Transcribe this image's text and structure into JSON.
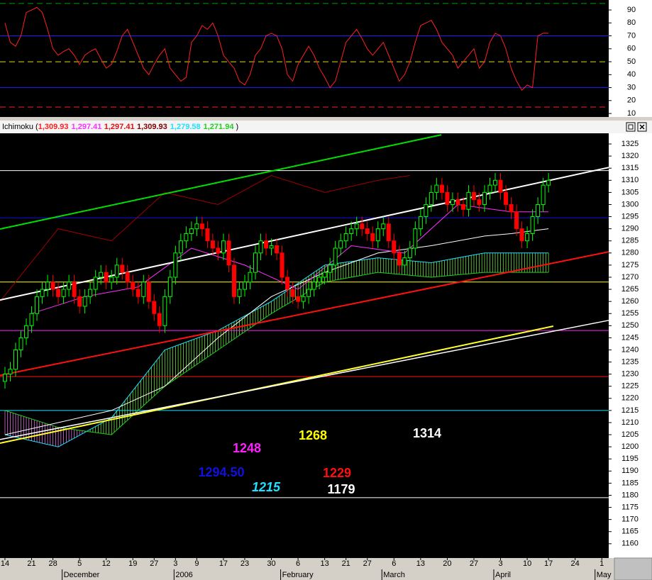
{
  "chart_data": [
    {
      "type": "line",
      "ylim": [
        7.3,
        97.7
      ],
      "xlim": [
        -0.93,
        113.3
      ],
      "yticks": [
        10,
        20,
        30,
        40,
        50,
        60,
        70,
        80,
        90
      ],
      "levels": [
        {
          "value": 95,
          "color": "#00a000",
          "dash": true
        },
        {
          "value": 70,
          "color": "#2020ff",
          "dash": false
        },
        {
          "value": 50,
          "color": "#e0e000",
          "dash": true
        },
        {
          "value": 30,
          "color": "#2020ff",
          "dash": false
        },
        {
          "value": 15,
          "color": "#ff2020",
          "dash": true
        }
      ],
      "series": [
        {
          "color": "#ff2020",
          "values": [
            80,
            65,
            62,
            70,
            88,
            90,
            92,
            88,
            75,
            60,
            55,
            58,
            60,
            55,
            48,
            55,
            58,
            60,
            52,
            45,
            48,
            58,
            70,
            75,
            65,
            55,
            45,
            40,
            48,
            55,
            60,
            45,
            40,
            35,
            38,
            65,
            70,
            78,
            75,
            80,
            70,
            55,
            50,
            45,
            35,
            32,
            40,
            55,
            60,
            70,
            72,
            70,
            60,
            40,
            35,
            48,
            55,
            62,
            55,
            45,
            38,
            30,
            35,
            50,
            65,
            70,
            75,
            68,
            60,
            55,
            60,
            65,
            55,
            45,
            35,
            40,
            50,
            65,
            78,
            80,
            82,
            75,
            65,
            60,
            55,
            45,
            50,
            55,
            60,
            45,
            50,
            65,
            72,
            70,
            60,
            45,
            35,
            28,
            32,
            30,
            70,
            72,
            72
          ]
        }
      ]
    },
    {
      "type": "candlestick",
      "title": "Ichimoku",
      "legend_open": "(",
      "legend_close": ")",
      "legend": [
        {
          "value": 1309.93,
          "label": "1,309.93",
          "color": "#ff2020"
        },
        {
          "value": 1297.41,
          "label": "1,297.41",
          "color": "#ff30ff"
        },
        {
          "value": 1297.41,
          "label": "1,297.41",
          "color": "#e01010"
        },
        {
          "value": 1309.93,
          "label": "1,309.93",
          "color": "#800000"
        },
        {
          "value": 1279.58,
          "label": "1,279.58",
          "color": "#20e0ff"
        },
        {
          "value": 1271.94,
          "label": "1,271.94",
          "color": "#20d020"
        }
      ],
      "ylim": [
        1154.1,
        1329.4
      ],
      "xlim": [
        -0.93,
        113.3
      ],
      "yticks": [
        1160,
        1165,
        1170,
        1175,
        1180,
        1185,
        1190,
        1195,
        1200,
        1205,
        1210,
        1215,
        1220,
        1225,
        1230,
        1235,
        1240,
        1245,
        1250,
        1255,
        1260,
        1265,
        1270,
        1275,
        1280,
        1285,
        1290,
        1295,
        1300,
        1305,
        1310,
        1315,
        1320,
        1325
      ],
      "xticks": [
        {
          "value": 0,
          "label": "14"
        },
        {
          "value": 5,
          "label": "21"
        },
        {
          "value": 9,
          "label": "28"
        },
        {
          "value": 14,
          "label": "5"
        },
        {
          "value": 19,
          "label": "12"
        },
        {
          "value": 24,
          "label": "19"
        },
        {
          "value": 28,
          "label": "27"
        },
        {
          "value": 32,
          "label": "3"
        },
        {
          "value": 36,
          "label": "9"
        },
        {
          "value": 41,
          "label": "17"
        },
        {
          "value": 45,
          "label": "23"
        },
        {
          "value": 50,
          "label": "30"
        },
        {
          "value": 55,
          "label": "6"
        },
        {
          "value": 60,
          "label": "13"
        },
        {
          "value": 64,
          "label": "21"
        },
        {
          "value": 68,
          "label": "27"
        },
        {
          "value": 73,
          "label": "6"
        },
        {
          "value": 78,
          "label": "13"
        },
        {
          "value": 83,
          "label": "20"
        },
        {
          "value": 88,
          "label": "27"
        },
        {
          "value": 93,
          "label": "3"
        },
        {
          "value": 98,
          "label": "10"
        },
        {
          "value": 102,
          "label": "17"
        },
        {
          "value": 107,
          "label": "24"
        },
        {
          "value": 112,
          "label": "1"
        }
      ],
      "month_ticks": [
        {
          "value": 11,
          "label": "December"
        },
        {
          "value": 32,
          "label": "2006"
        },
        {
          "value": 52,
          "label": "February"
        },
        {
          "value": 71,
          "label": "March"
        },
        {
          "value": 92,
          "label": "April"
        },
        {
          "value": 111,
          "label": "May"
        }
      ],
      "open": [
        1227,
        1230,
        1232,
        1240,
        1245,
        1250,
        1255,
        1262,
        1265,
        1268,
        1265,
        1262,
        1265,
        1268,
        1262,
        1258,
        1262,
        1265,
        1270,
        1272,
        1268,
        1270,
        1275,
        1272,
        1268,
        1265,
        1262,
        1268,
        1260,
        1255,
        1250,
        1262,
        1270,
        1280,
        1285,
        1288,
        1290,
        1292,
        1290,
        1285,
        1282,
        1280,
        1285,
        1275,
        1262,
        1265,
        1268,
        1272,
        1280,
        1285,
        1282,
        1283,
        1280,
        1270,
        1265,
        1262,
        1260,
        1262,
        1265,
        1268,
        1270,
        1272,
        1275,
        1282,
        1285,
        1288,
        1290,
        1292,
        1290,
        1288,
        1285,
        1290,
        1292,
        1285,
        1280,
        1275,
        1278,
        1282,
        1290,
        1295,
        1300,
        1305,
        1308,
        1305,
        1300,
        1302,
        1300,
        1298,
        1305,
        1302,
        1300,
        1305,
        1308,
        1310,
        1305,
        1300,
        1297,
        1290,
        1285,
        1288,
        1295,
        1300,
        1308
      ],
      "high": [
        1233,
        1235,
        1243,
        1248,
        1253,
        1258,
        1265,
        1268,
        1271,
        1271,
        1268,
        1268,
        1271,
        1271,
        1265,
        1265,
        1268,
        1273,
        1275,
        1275,
        1273,
        1278,
        1278,
        1275,
        1271,
        1268,
        1271,
        1271,
        1263,
        1258,
        1265,
        1273,
        1283,
        1288,
        1291,
        1293,
        1295,
        1295,
        1293,
        1288,
        1285,
        1288,
        1288,
        1278,
        1268,
        1271,
        1275,
        1283,
        1288,
        1288,
        1286,
        1286,
        1283,
        1273,
        1268,
        1265,
        1265,
        1268,
        1271,
        1273,
        1275,
        1278,
        1285,
        1288,
        1291,
        1293,
        1295,
        1295,
        1293,
        1291,
        1293,
        1295,
        1295,
        1288,
        1283,
        1281,
        1285,
        1293,
        1298,
        1303,
        1308,
        1311,
        1311,
        1308,
        1305,
        1305,
        1303,
        1308,
        1308,
        1305,
        1308,
        1311,
        1313,
        1313,
        1308,
        1303,
        1300,
        1293,
        1291,
        1298,
        1303,
        1311,
        1313
      ],
      "low": [
        1224,
        1227,
        1229,
        1237,
        1242,
        1247,
        1252,
        1259,
        1262,
        1262,
        1259,
        1259,
        1262,
        1259,
        1255,
        1255,
        1259,
        1262,
        1267,
        1265,
        1265,
        1267,
        1269,
        1265,
        1262,
        1259,
        1259,
        1257,
        1252,
        1247,
        1247,
        1259,
        1267,
        1277,
        1282,
        1285,
        1287,
        1287,
        1282,
        1279,
        1277,
        1277,
        1272,
        1259,
        1259,
        1262,
        1265,
        1269,
        1277,
        1279,
        1279,
        1277,
        1267,
        1262,
        1259,
        1257,
        1257,
        1259,
        1262,
        1265,
        1267,
        1269,
        1272,
        1279,
        1282,
        1285,
        1287,
        1287,
        1285,
        1282,
        1282,
        1287,
        1282,
        1277,
        1272,
        1272,
        1275,
        1279,
        1287,
        1292,
        1297,
        1302,
        1302,
        1297,
        1297,
        1297,
        1295,
        1295,
        1299,
        1297,
        1297,
        1302,
        1305,
        1302,
        1297,
        1294,
        1287,
        1282,
        1282,
        1285,
        1292,
        1297,
        1305
      ],
      "close": [
        1230,
        1232,
        1240,
        1245,
        1250,
        1255,
        1262,
        1265,
        1268,
        1265,
        1262,
        1265,
        1268,
        1262,
        1258,
        1262,
        1265,
        1270,
        1272,
        1268,
        1270,
        1275,
        1272,
        1268,
        1265,
        1262,
        1268,
        1260,
        1255,
        1250,
        1262,
        1270,
        1280,
        1285,
        1288,
        1290,
        1292,
        1290,
        1285,
        1282,
        1280,
        1285,
        1275,
        1262,
        1265,
        1268,
        1272,
        1280,
        1285,
        1282,
        1283,
        1280,
        1270,
        1265,
        1262,
        1260,
        1262,
        1265,
        1268,
        1270,
        1272,
        1275,
        1282,
        1285,
        1288,
        1290,
        1292,
        1290,
        1288,
        1285,
        1290,
        1292,
        1285,
        1280,
        1275,
        1278,
        1282,
        1290,
        1295,
        1300,
        1305,
        1308,
        1305,
        1300,
        1302,
        1300,
        1298,
        1305,
        1302,
        1300,
        1305,
        1308,
        1310,
        1305,
        1300,
        1297,
        1290,
        1285,
        1288,
        1295,
        1300,
        1308,
        1310
      ],
      "up_color": "#00ff00",
      "down_color": "#ff0000",
      "cloud": {
        "a": 0,
        "b": 1,
        "up_color": "#7cff40",
        "down_color": "#ff80ff"
      },
      "series": [
        {
          "color": "#20e0ff",
          "x": [
            0,
            10,
            20,
            30,
            40,
            50,
            60,
            70,
            80,
            90,
            102
          ],
          "values": [
            1205,
            1200,
            1212,
            1240,
            1248,
            1260,
            1275,
            1278,
            1276,
            1280,
            1280
          ]
        },
        {
          "color": "#20d020",
          "x": [
            0,
            10,
            20,
            30,
            40,
            50,
            60,
            70,
            80,
            90,
            102
          ],
          "values": [
            1215,
            1208,
            1205,
            1225,
            1240,
            1255,
            1268,
            1272,
            1270,
            1272,
            1272
          ]
        },
        {
          "color": "#ffffff",
          "x": [
            0,
            10,
            20,
            30,
            40,
            50,
            60,
            70,
            80,
            90,
            95,
            102
          ],
          "values": [
            1205,
            1210,
            1215,
            1225,
            1245,
            1262,
            1272,
            1280,
            1283,
            1287,
            1288,
            1290
          ]
        },
        {
          "color": "#ff30ff",
          "x": [
            5,
            15,
            25,
            35,
            45,
            55,
            65,
            75,
            85,
            95,
            102
          ],
          "values": [
            1255,
            1262,
            1266,
            1282,
            1275,
            1265,
            1283,
            1280,
            1300,
            1297,
            1297
          ]
        },
        {
          "color": "#a00000",
          "x": [
            -0.93,
            10,
            20,
            30,
            40,
            50,
            60,
            70,
            76
          ],
          "values": [
            1260,
            1290,
            1285,
            1305,
            1300,
            1312,
            1305,
            1310,
            1312
          ]
        },
        {
          "color": "#00e000",
          "x": [
            -0.93,
            81.9
          ],
          "values": [
            1289.9,
            1328.8
          ],
          "width": 2
        },
        {
          "color": "#ffffff",
          "x": [
            -0.93,
            113.3
          ],
          "values": [
            1260.6,
            1315.3
          ],
          "width": 2
        },
        {
          "color": "#ff1010",
          "x": [
            -0.93,
            113.3
          ],
          "values": [
            1229.5,
            1280.5
          ],
          "width": 2
        },
        {
          "color": "#ffff30",
          "x": [
            -0.93,
            102.9
          ],
          "values": [
            1201.5,
            1249.8
          ],
          "width": 2
        },
        {
          "color": "#ffffff",
          "x": [
            -0.93,
            113.3
          ],
          "values": [
            1203,
            1252.2
          ],
          "width": 1.5
        }
      ],
      "levels": [
        {
          "value": 1314,
          "label": "1314",
          "color": "#ffffff"
        },
        {
          "value": 1294.5,
          "label": "1294.50",
          "color": "#1010e0"
        },
        {
          "value": 1268,
          "label": "1268",
          "color": "#ffff00"
        },
        {
          "value": 1248,
          "label": "1248",
          "color": "#ff20ff"
        },
        {
          "value": 1229,
          "label": "1229",
          "color": "#ff1010"
        },
        {
          "value": 1215,
          "label": "1215",
          "color": "#20e0ff",
          "italic": true
        },
        {
          "value": 1179,
          "label": "1179",
          "color": "#ffffff"
        }
      ]
    }
  ]
}
